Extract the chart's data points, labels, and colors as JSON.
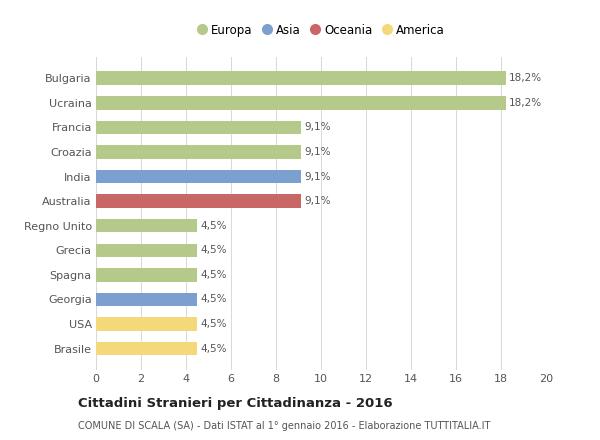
{
  "countries": [
    "Bulgaria",
    "Ucraina",
    "Francia",
    "Croazia",
    "India",
    "Australia",
    "Regno Unito",
    "Grecia",
    "Spagna",
    "Georgia",
    "USA",
    "Brasile"
  ],
  "values": [
    18.2,
    18.2,
    9.1,
    9.1,
    9.1,
    9.1,
    4.5,
    4.5,
    4.5,
    4.5,
    4.5,
    4.5
  ],
  "labels": [
    "18,2%",
    "18,2%",
    "9,1%",
    "9,1%",
    "9,1%",
    "9,1%",
    "4,5%",
    "4,5%",
    "4,5%",
    "4,5%",
    "4,5%",
    "4,5%"
  ],
  "colors": [
    "#b5c98a",
    "#b5c98a",
    "#b5c98a",
    "#b5c98a",
    "#7b9fcf",
    "#c96666",
    "#b5c98a",
    "#b5c98a",
    "#b5c98a",
    "#7b9fcf",
    "#f5d87a",
    "#f5d87a"
  ],
  "legend_labels": [
    "Europa",
    "Asia",
    "Oceania",
    "America"
  ],
  "legend_colors": [
    "#b5c98a",
    "#7b9fcf",
    "#c96666",
    "#f5d87a"
  ],
  "title": "Cittadini Stranieri per Cittadinanza - 2016",
  "subtitle": "COMUNE DI SCALA (SA) - Dati ISTAT al 1° gennaio 2016 - Elaborazione TUTTITALIA.IT",
  "xlim": [
    0,
    20
  ],
  "xticks": [
    0,
    2,
    4,
    6,
    8,
    10,
    12,
    14,
    16,
    18,
    20
  ],
  "bg_color": "#ffffff",
  "grid_color": "#d8d8d8",
  "bar_height": 0.55
}
